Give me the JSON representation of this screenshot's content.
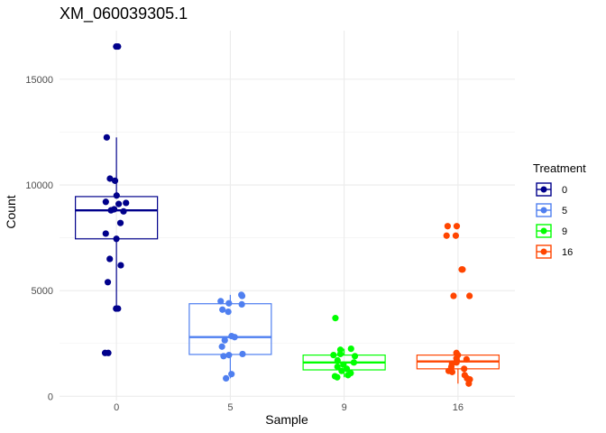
{
  "chart_data": {
    "type": "box",
    "title": "XM_060039305.1",
    "xlabel": "Sample",
    "ylabel": "Count",
    "ylim": [
      -200,
      17300
    ],
    "yticks": [
      0,
      5000,
      10000,
      15000
    ],
    "grid": true,
    "legend": {
      "title": "Treatment",
      "position": "right"
    },
    "categories": [
      "0",
      "5",
      "9",
      "16"
    ],
    "series": [
      {
        "name": "0",
        "color": "#00008b",
        "box": {
          "q1": 7450,
          "median": 8800,
          "q3": 9450,
          "whisker_low": 4150,
          "whisker_high": 12250
        },
        "points": [
          16550,
          16550,
          12250,
          10300,
          10200,
          9500,
          9200,
          9150,
          9100,
          8850,
          8800,
          8750,
          8200,
          7700,
          7450,
          6500,
          6200,
          5400,
          4150,
          4150,
          2050,
          2050
        ]
      },
      {
        "name": "5",
        "color": "#4f7ff0",
        "box": {
          "q1": 1980,
          "median": 2800,
          "q3": 4380,
          "whisker_low": 850,
          "whisker_high": 4800
        },
        "points": [
          4800,
          4750,
          4500,
          4400,
          4350,
          4100,
          4000,
          2850,
          2800,
          2650,
          2350,
          2000,
          1950,
          1900,
          1050,
          850
        ]
      },
      {
        "name": "9",
        "color": "#00ff00",
        "box": {
          "q1": 1250,
          "median": 1600,
          "q3": 1950,
          "whisker_low": 900,
          "whisker_high": 2250
        },
        "points": [
          3700,
          2250,
          2200,
          2000,
          1950,
          1900,
          1700,
          1600,
          1500,
          1400,
          1300,
          1200,
          1100,
          1000,
          950,
          900
        ]
      },
      {
        "name": "16",
        "color": "#ff4500",
        "box": {
          "q1": 1300,
          "median": 1650,
          "q3": 1950,
          "whisker_low": 600,
          "whisker_high": 2100
        },
        "points": [
          8050,
          8050,
          7600,
          7600,
          6000,
          6000,
          4750,
          4750,
          2050,
          1950,
          1800,
          1750,
          1700,
          1600,
          1550,
          1400,
          1300,
          1200,
          1150,
          1000,
          850,
          800,
          600
        ]
      }
    ]
  }
}
